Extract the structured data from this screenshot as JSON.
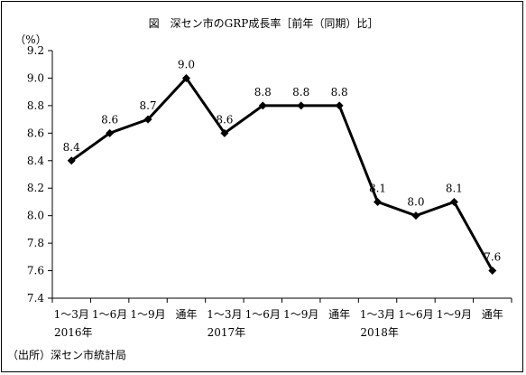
{
  "chart_data": {
    "type": "line",
    "title": "図　深セン市のGRP成長率［前年（同期）比］",
    "ylabel": "（%）",
    "source": "（出所）深セン市統計局",
    "ylim": [
      7.4,
      9.2
    ],
    "yticks": [
      "7.4",
      "7.6",
      "7.8",
      "8.0",
      "8.2",
      "8.4",
      "8.6",
      "8.8",
      "9.0",
      "9.2"
    ],
    "categories": [
      "1～3月",
      "1～6月",
      "1～9月",
      "通年",
      "1～3月",
      "1～6月",
      "1～9月",
      "通年",
      "1～3月",
      "1～6月",
      "1～9月",
      "通年"
    ],
    "year_groups": [
      {
        "label": "2016年",
        "start": 0,
        "end": 3
      },
      {
        "label": "2017年",
        "start": 4,
        "end": 7
      },
      {
        "label": "2018年",
        "start": 8,
        "end": 11
      }
    ],
    "series": [
      {
        "values": [
          8.4,
          8.6,
          8.7,
          9.0,
          8.6,
          8.8,
          8.8,
          8.8,
          8.1,
          8.0,
          8.1,
          7.6
        ],
        "data_labels": [
          "8.4",
          "8.6",
          "8.7",
          "9.0",
          "8.6",
          "8.8",
          "8.8",
          "8.8",
          "8.1",
          "8.0",
          "8.1",
          "7.6"
        ]
      }
    ],
    "grid": false,
    "line_color": "#000000",
    "marker": "diamond"
  }
}
